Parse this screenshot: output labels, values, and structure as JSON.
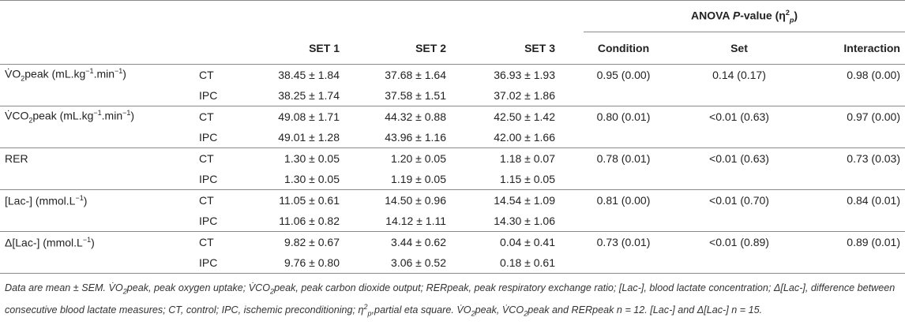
{
  "headers": {
    "anova_title_prefix": "ANOVA ",
    "anova_title_italic": "P",
    "anova_title_suffix": "-value (η",
    "anova_sup": "2",
    "anova_sub": "p",
    "anova_close": ")",
    "set1": "SET 1",
    "set2": "SET 2",
    "set3": "SET 3",
    "condition": "Condition",
    "set": "Set",
    "interaction": "Interaction"
  },
  "rows": [
    {
      "var_html": "V̇O<sub>2</sub>peak (mL.kg<sup>−1</sup>.min<sup>−1</sup>)",
      "r1": {
        "cond": "CT",
        "s1": "38.45 ± 1.84",
        "s2": "37.68 ± 1.64",
        "s3": "36.93 ± 1.93",
        "a": "0.95 (0.00)",
        "b": "0.14 (0.17)",
        "c": "0.98 (0.00)"
      },
      "r2": {
        "cond": "IPC",
        "s1": "38.25 ± 1.74",
        "s2": "37.58 ± 1.51",
        "s3": "37.02 ± 1.86"
      }
    },
    {
      "var_html": "V̇CO<sub>2</sub>peak (mL.kg<sup>−1</sup>.min<sup>−1</sup>)",
      "r1": {
        "cond": "CT",
        "s1": "49.08 ± 1.71",
        "s2": "44.32 ± 0.88",
        "s3": "42.50 ± 1.42",
        "a": "0.80 (0.01)",
        "b": "<0.01 (0.63)",
        "c": "0.97 (0.00)"
      },
      "r2": {
        "cond": "IPC",
        "s1": "49.01 ± 1.28",
        "s2": "43.96 ± 1.16",
        "s3": "42.00 ± 1.66"
      }
    },
    {
      "var_html": "RER",
      "r1": {
        "cond": "CT",
        "s1": "1.30 ± 0.05",
        "s2": "1.20 ± 0.05",
        "s3": "1.18 ± 0.07",
        "a": "0.78 (0.01)",
        "b": "<0.01 (0.63)",
        "c": "0.73 (0.03)"
      },
      "r2": {
        "cond": "IPC",
        "s1": "1.30 ± 0.05",
        "s2": "1.19 ± 0.05",
        "s3": "1.15 ± 0.05"
      }
    },
    {
      "var_html": "[Lac-] (mmol.L<sup>−1</sup>)",
      "r1": {
        "cond": "CT",
        "s1": "11.05 ± 0.61",
        "s2": "14.50 ± 0.96",
        "s3": "14.54 ± 1.09",
        "a": "0.81 (0.00)",
        "b": "<0.01 (0.70)",
        "c": "0.84 (0.01)"
      },
      "r2": {
        "cond": "IPC",
        "s1": "11.06 ± 0.82",
        "s2": "14.12 ± 1.11",
        "s3": "14.30 ± 1.06"
      }
    },
    {
      "var_html": "Δ[Lac-] (mmol.L<sup>−1</sup>)",
      "r1": {
        "cond": "CT",
        "s1": "9.82 ± 0.67",
        "s2": "3.44 ± 0.62",
        "s3": "0.04 ± 0.41",
        "a": "0.73 (0.01)",
        "b": "<0.01 (0.89)",
        "c": "0.89 (0.01)"
      },
      "r2": {
        "cond": "IPC",
        "s1": "9.76 ± 0.80",
        "s2": "3.06 ± 0.52",
        "s3": "0.18 ± 0.61"
      }
    }
  ],
  "note_html": "Data are mean ± SEM. V̇O<sub>2</sub>peak, peak oxygen uptake; V̇CO<sub>2</sub>peak, peak carbon dioxide output; RERpeak, peak respiratory exchange ratio; [Lac-], blood lactate concentration; Δ[Lac-], difference between consecutive blood lactate measures; CT, control; IPC, ischemic preconditioning; η<sup>2</sup><sub>p</sub>,partial eta square. V̇O<sub>2</sub>peak, V̇CO<sub>2</sub>peak and RERpeak n = 12. [Lac-] and Δ[Lac-] n = 15."
}
